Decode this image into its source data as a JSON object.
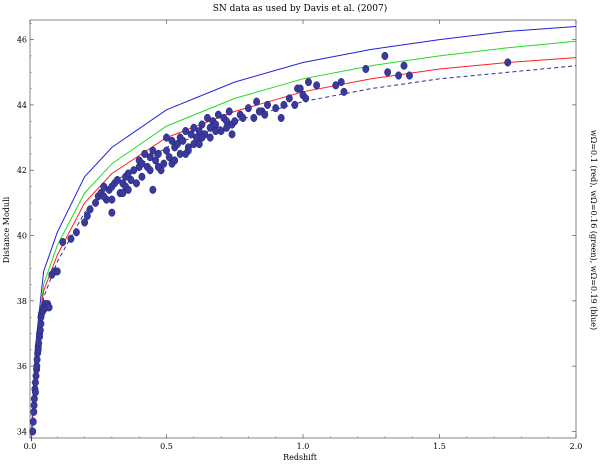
{
  "chart_data": {
    "type": "scatter",
    "title": "SN data as used by Davis et al. (2007)",
    "xlabel": "Redshift",
    "ylabel": "Distance Moduli",
    "side_label": "wΩ=0.1 (red), wΩ=0.16 (green), wΩ=0.19 (blue)",
    "xlim": [
      0,
      2.0
    ],
    "ylim": [
      33.8,
      46.6
    ],
    "x_ticks": [
      0,
      0.5,
      1.0,
      1.5,
      2.0
    ],
    "x_tick_labels": [
      "0.0",
      "0.5",
      "1.0",
      "1.5",
      "2.0"
    ],
    "y_ticks": [
      34,
      36,
      38,
      40,
      42,
      44,
      46
    ],
    "y_tick_labels": [
      "34",
      "36",
      "38",
      "40",
      "42",
      "44",
      "46"
    ],
    "grid": false,
    "legend": "none",
    "colors": {
      "points": "#3a3a9c",
      "red": "#ff2020",
      "green": "#22dd22",
      "blue": "#2020dd",
      "dashed": "#303090"
    },
    "curves": [
      {
        "style": "solid",
        "color": "blue",
        "x": [
          0.005,
          0.02,
          0.05,
          0.1,
          0.2,
          0.3,
          0.5,
          0.75,
          1.0,
          1.25,
          1.5,
          1.75,
          2.0
        ],
        "y": [
          33.9,
          36.6,
          38.9,
          40.1,
          41.8,
          42.7,
          43.85,
          44.7,
          45.3,
          45.7,
          46.0,
          46.25,
          46.4
        ]
      },
      {
        "style": "solid",
        "color": "green",
        "x": [
          0.005,
          0.02,
          0.05,
          0.1,
          0.2,
          0.3,
          0.5,
          0.75,
          1.0,
          1.25,
          1.5,
          1.75,
          2.0
        ],
        "y": [
          33.8,
          36.4,
          38.5,
          39.7,
          41.3,
          42.2,
          43.35,
          44.2,
          44.8,
          45.2,
          45.5,
          45.75,
          45.95
        ]
      },
      {
        "style": "solid",
        "color": "red",
        "x": [
          0.005,
          0.02,
          0.05,
          0.1,
          0.2,
          0.3,
          0.5,
          0.75,
          1.0,
          1.25,
          1.5,
          1.75,
          2.0
        ],
        "y": [
          33.8,
          36.3,
          38.3,
          39.4,
          41.0,
          41.9,
          43.0,
          43.8,
          44.4,
          44.8,
          45.1,
          45.3,
          45.45
        ]
      },
      {
        "style": "dashed",
        "color": "dashed",
        "x": [
          0.005,
          0.02,
          0.05,
          0.1,
          0.2,
          0.3,
          0.5,
          0.75,
          1.0,
          1.25,
          1.5,
          1.75,
          2.0
        ],
        "y": [
          33.7,
          36.1,
          38.1,
          39.2,
          40.7,
          41.6,
          42.7,
          43.5,
          44.1,
          44.5,
          44.8,
          45.0,
          45.2
        ]
      }
    ],
    "points": {
      "x": [
        0.01,
        0.012,
        0.014,
        0.015,
        0.016,
        0.018,
        0.02,
        0.02,
        0.022,
        0.024,
        0.025,
        0.026,
        0.028,
        0.03,
        0.03,
        0.032,
        0.035,
        0.035,
        0.038,
        0.04,
        0.04,
        0.042,
        0.045,
        0.048,
        0.05,
        0.055,
        0.06,
        0.065,
        0.07,
        0.08,
        0.09,
        0.1,
        0.12,
        0.15,
        0.17,
        0.2,
        0.21,
        0.22,
        0.24,
        0.25,
        0.26,
        0.27,
        0.28,
        0.29,
        0.3,
        0.3,
        0.31,
        0.32,
        0.33,
        0.34,
        0.35,
        0.35,
        0.36,
        0.37,
        0.38,
        0.39,
        0.4,
        0.4,
        0.41,
        0.42,
        0.43,
        0.44,
        0.45,
        0.45,
        0.46,
        0.47,
        0.48,
        0.49,
        0.5,
        0.5,
        0.51,
        0.52,
        0.53,
        0.54,
        0.55,
        0.55,
        0.56,
        0.57,
        0.58,
        0.59,
        0.6,
        0.6,
        0.61,
        0.62,
        0.63,
        0.64,
        0.65,
        0.66,
        0.67,
        0.68,
        0.69,
        0.7,
        0.71,
        0.72,
        0.73,
        0.74,
        0.75,
        0.77,
        0.8,
        0.82,
        0.83,
        0.85,
        0.86,
        0.87,
        0.9,
        0.92,
        0.95,
        0.97,
        0.98,
        1.0,
        1.01,
        1.02,
        1.05,
        1.12,
        1.14,
        1.15,
        1.23,
        1.3,
        1.31,
        1.35,
        1.37,
        1.39,
        1.75,
        0.3,
        0.34,
        0.44,
        0.52,
        0.58,
        0.63,
        0.68,
        0.74,
        0.78,
        0.84,
        0.93,
        0.99,
        0.27,
        0.36,
        0.41,
        0.47,
        0.53,
        0.57,
        0.62,
        0.66,
        0.72
      ],
      "y": [
        34.0,
        34.3,
        34.6,
        34.8,
        35.0,
        35.3,
        35.2,
        35.5,
        35.7,
        35.9,
        36.0,
        36.2,
        36.4,
        36.5,
        36.6,
        36.7,
        36.9,
        37.0,
        37.1,
        37.3,
        37.5,
        37.6,
        37.7,
        37.7,
        37.8,
        37.9,
        37.8,
        37.9,
        37.8,
        38.8,
        38.9,
        38.9,
        39.8,
        39.9,
        40.1,
        40.4,
        40.6,
        40.8,
        41.0,
        41.2,
        41.3,
        41.5,
        41.1,
        41.4,
        40.7,
        41.5,
        41.6,
        41.7,
        41.3,
        41.6,
        41.5,
        41.8,
        41.9,
        41.7,
        42.0,
        41.6,
        42.1,
        42.3,
        42.2,
        42.5,
        42.1,
        42.4,
        41.4,
        42.6,
        42.3,
        42.5,
        42.0,
        42.2,
        42.6,
        43.0,
        42.4,
        42.9,
        42.7,
        42.8,
        42.5,
        43.0,
        42.9,
        43.2,
        42.7,
        43.1,
        42.8,
        43.3,
        43.0,
        43.2,
        43.4,
        43.1,
        43.6,
        43.3,
        43.5,
        43.4,
        43.7,
        43.2,
        43.6,
        43.5,
        43.8,
        43.4,
        43.5,
        43.7,
        43.9,
        43.6,
        44.1,
        43.8,
        43.7,
        44.0,
        43.9,
        43.6,
        44.2,
        44.0,
        44.5,
        44.3,
        44.2,
        44.7,
        44.6,
        44.6,
        44.7,
        44.4,
        45.1,
        45.5,
        45.0,
        44.9,
        45.2,
        44.9,
        45.3,
        41.1,
        41.3,
        42.0,
        42.2,
        42.6,
        43.0,
        43.2,
        43.1,
        43.6,
        43.8,
        44.0,
        44.5,
        41.2,
        41.4,
        41.8,
        42.1,
        42.3,
        42.5,
        42.8,
        43.0,
        43.3
      ]
    }
  }
}
